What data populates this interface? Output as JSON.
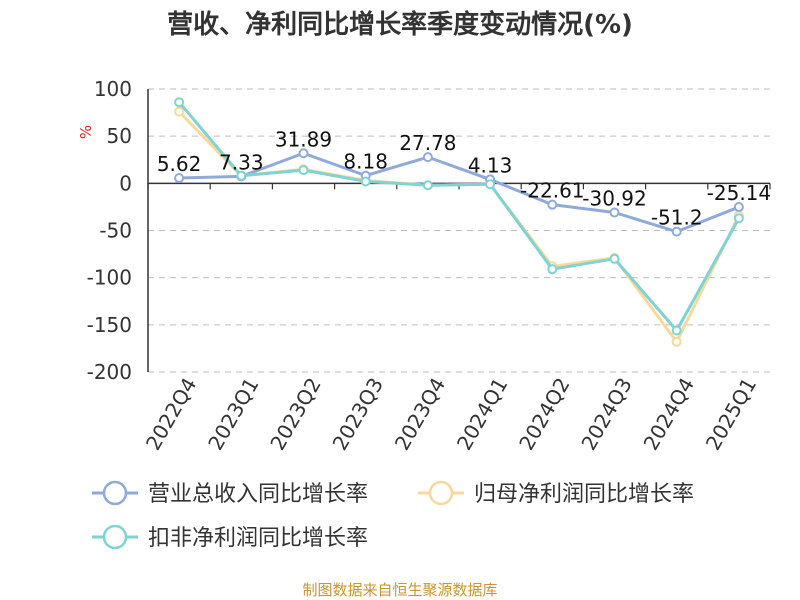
{
  "chart_data": {
    "type": "line",
    "title": "营收、净利同比增长率季度变动情况(%)",
    "ylabel": "%",
    "xlabel": "",
    "categories": [
      "2022Q4",
      "2023Q1",
      "2023Q2",
      "2023Q3",
      "2023Q4",
      "2024Q1",
      "2024Q2",
      "2024Q3",
      "2024Q4",
      "2025Q1"
    ],
    "ylim": [
      -200,
      100
    ],
    "yticks": [
      100,
      50,
      0,
      -50,
      -100,
      -150,
      -200
    ],
    "grid": true,
    "legend_position": "bottom",
    "series": [
      {
        "name": "营业总收入同比增长率",
        "color": "#8faad8",
        "labels_shown": true,
        "values": [
          5.62,
          7.33,
          31.89,
          8.18,
          27.78,
          4.13,
          -22.61,
          -30.92,
          -51.2,
          -25.14
        ]
      },
      {
        "name": "归母净利润同比增长率",
        "color": "#f8d99b",
        "labels_shown": false,
        "values": [
          76,
          8,
          15,
          3,
          -2,
          -1,
          -88,
          -79,
          -168,
          -34
        ]
      },
      {
        "name": "扣非净利润同比增长率",
        "color": "#7fd3d3",
        "labels_shown": false,
        "values": [
          86,
          8,
          14,
          2,
          -2,
          -1,
          -91,
          -80,
          -156,
          -37
        ]
      }
    ]
  },
  "source_note": "制图数据来自恒生聚源数据库"
}
